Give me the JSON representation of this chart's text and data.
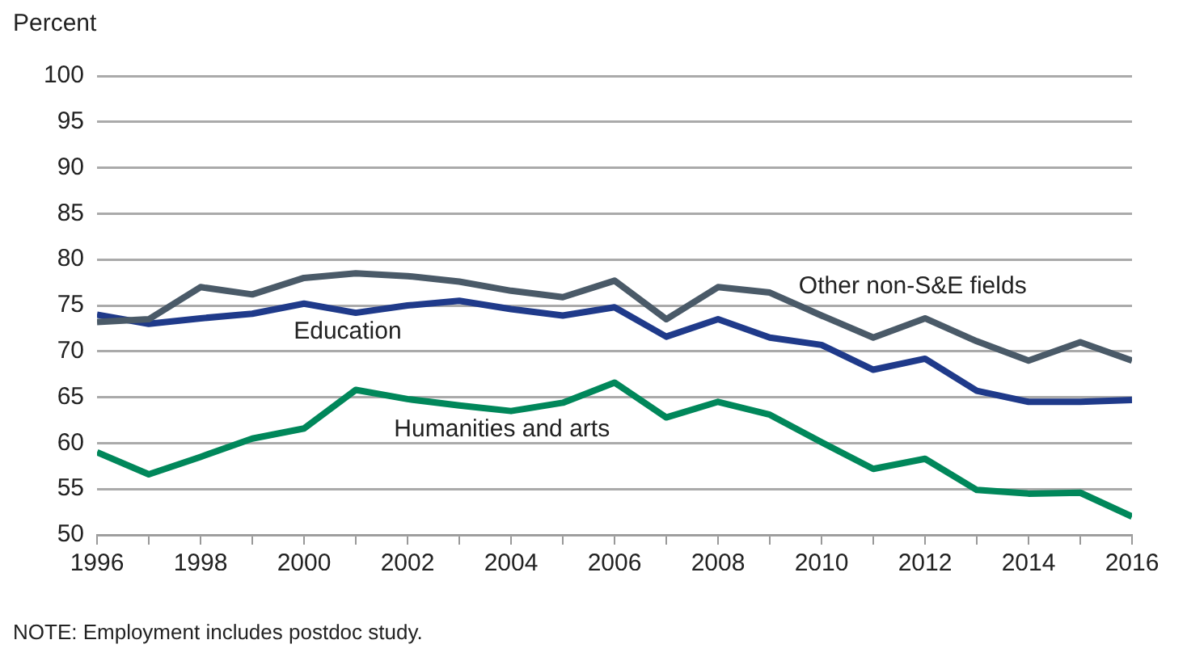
{
  "chart_data": {
    "type": "line",
    "ylabel": "Percent",
    "x": [
      1996,
      1997,
      1998,
      1999,
      2000,
      2001,
      2002,
      2003,
      2004,
      2005,
      2006,
      2007,
      2008,
      2009,
      2010,
      2011,
      2012,
      2013,
      2014,
      2015,
      2016
    ],
    "series": [
      {
        "name": "Other non-S&E fields",
        "color": "#4a5a68",
        "values": [
          73.2,
          73.5,
          77,
          76.2,
          78,
          78.5,
          78.2,
          77.6,
          76.6,
          75.9,
          77.7,
          73.5,
          77,
          76.4,
          73.9,
          71.5,
          73.6,
          71.1,
          69,
          71,
          69
        ]
      },
      {
        "name": "Education",
        "color": "#1f3a8a",
        "values": [
          74,
          73,
          73.6,
          74.1,
          75.2,
          74.2,
          75,
          75.5,
          74.6,
          73.9,
          74.8,
          71.6,
          73.5,
          71.5,
          70.7,
          68,
          69.2,
          65.7,
          64.5,
          64.5,
          64.7
        ]
      },
      {
        "name": "Humanities and arts",
        "color": "#00875a",
        "values": [
          59,
          56.6,
          58.5,
          60.5,
          61.6,
          65.8,
          64.8,
          64.1,
          63.5,
          64.4,
          66.6,
          62.8,
          64.5,
          63.1,
          60.1,
          57.2,
          58.3,
          54.9,
          54.5,
          54.6,
          52
        ]
      }
    ],
    "xlim": [
      1996,
      2016
    ],
    "xticks": [
      1996,
      {
        "value": 1997,
        "label": null
      },
      1998,
      {
        "value": 1999,
        "label": null
      },
      2000,
      {
        "value": 2001,
        "label": null
      },
      2002,
      {
        "value": 2003,
        "label": null
      },
      2004,
      {
        "value": 2005,
        "label": null
      },
      2006,
      {
        "value": 2007,
        "label": null
      },
      2008,
      {
        "value": 2009,
        "label": null
      },
      2010,
      {
        "value": 2011,
        "label": null
      },
      2012,
      {
        "value": 2013,
        "label": null
      },
      2014,
      {
        "value": 2015,
        "label": null
      },
      2016
    ],
    "ylim": [
      50,
      100
    ],
    "yticks": [
      50,
      55,
      60,
      65,
      70,
      75,
      80,
      85,
      90,
      95,
      100
    ],
    "grid": "y",
    "legend": false,
    "marker": "none",
    "line_style": "solid",
    "annotations": [
      "NOTE: Employment includes postdoc study."
    ]
  }
}
